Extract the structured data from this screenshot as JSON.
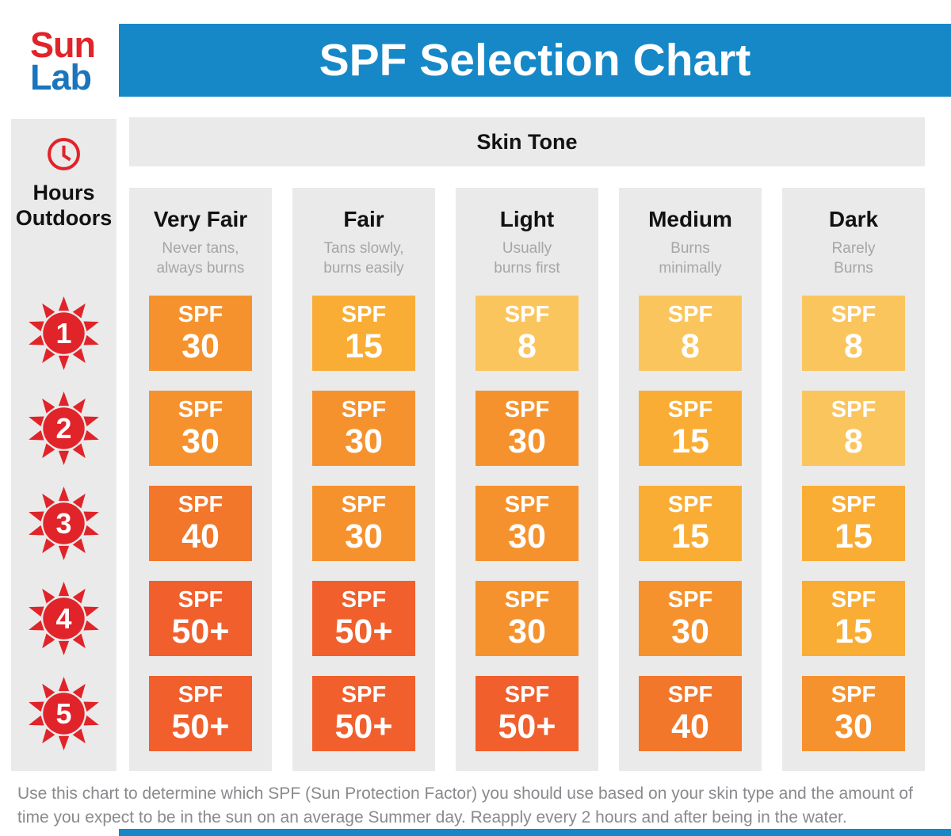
{
  "logo": {
    "line1": "Sun",
    "line2": "Lab"
  },
  "header": {
    "title": "SPF Selection Chart"
  },
  "left_column": {
    "icon": "clock-icon",
    "label": "Hours Outdoors"
  },
  "skin_tone_label": "Skin Tone",
  "chart_data": {
    "type": "heatmap",
    "title": "SPF Selection Chart",
    "row_header": "Hours Outdoors",
    "col_header": "Skin Tone",
    "rows": [
      "1",
      "2",
      "3",
      "4",
      "5"
    ],
    "columns": [
      "Very Fair",
      "Fair",
      "Light",
      "Medium",
      "Dark"
    ],
    "column_descriptions": [
      "Never tans,\nalways burns",
      "Tans slowly,\nburns easily",
      "Usually\nburns first",
      "Burns\nminimally",
      "Rarely\nBurns"
    ],
    "value_prefix": "SPF",
    "values": [
      [
        "30",
        "15",
        "8",
        "8",
        "8"
      ],
      [
        "30",
        "30",
        "30",
        "15",
        "8"
      ],
      [
        "40",
        "30",
        "30",
        "15",
        "15"
      ],
      [
        "50+",
        "50+",
        "30",
        "30",
        "15"
      ],
      [
        "50+",
        "50+",
        "50+",
        "40",
        "30"
      ]
    ],
    "value_colors": {
      "8": "#FBC55E",
      "15": "#FAAD35",
      "30": "#F6922D",
      "40": "#F3772A",
      "50+": "#F15F2C"
    }
  },
  "footer": {
    "note": "Use this chart to determine which SPF (Sun Protection Factor) you should use based on your skin type and the amount of time you expect to be in the sun on an average Summer day. Reapply every 2 hours and after being in the water."
  },
  "colors": {
    "header_blue": "#1688C7",
    "logo_red": "#E02429",
    "logo_blue": "#1B75BC",
    "accent_red": "#E02429",
    "panel_gray": "#EAEAEA",
    "title_text": "#121212",
    "subtitle_gray": "#A6A6A6",
    "footer_gray": "#8A8A8E"
  }
}
